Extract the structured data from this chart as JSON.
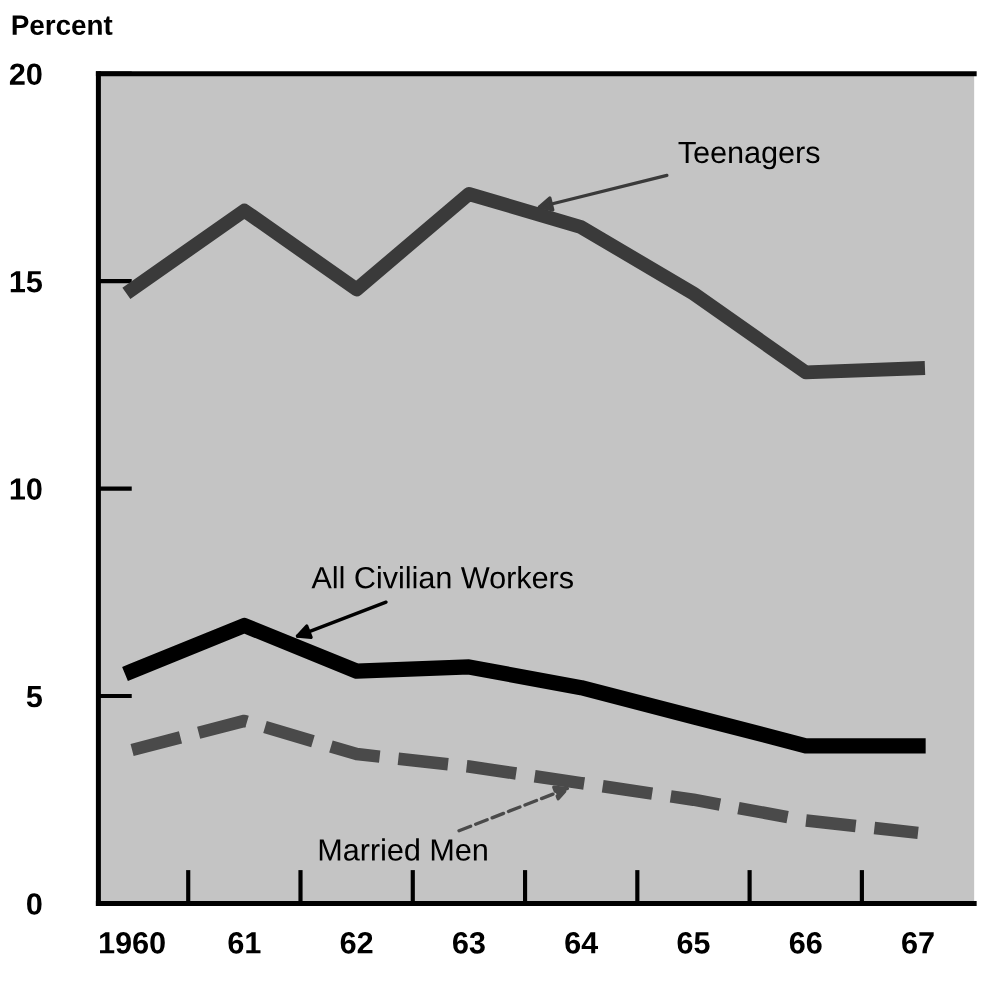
{
  "chart_data": {
    "type": "line",
    "ylabel": "Percent",
    "categories": [
      "1960",
      "61",
      "62",
      "63",
      "64",
      "65",
      "66",
      "67"
    ],
    "ylim": [
      0,
      20
    ],
    "yticks": [
      0,
      5,
      10,
      15,
      20
    ],
    "grid": false,
    "marker": "none",
    "series": [
      {
        "name": "Teenagers",
        "color": "#3a3a3a",
        "line_style": "solid",
        "values": [
          14.8,
          16.7,
          14.8,
          17.1,
          16.3,
          14.7,
          12.8,
          12.9
        ]
      },
      {
        "name": "All Civilian Workers",
        "color": "#000000",
        "line_style": "solid",
        "values": [
          5.6,
          6.7,
          5.6,
          5.7,
          5.2,
          4.5,
          3.8,
          3.8
        ]
      },
      {
        "name": "Married Men",
        "color": "#4a4a4a",
        "line_style": "dashed",
        "values": [
          3.7,
          4.4,
          3.6,
          3.3,
          2.9,
          2.5,
          2.0,
          1.7
        ]
      }
    ]
  }
}
